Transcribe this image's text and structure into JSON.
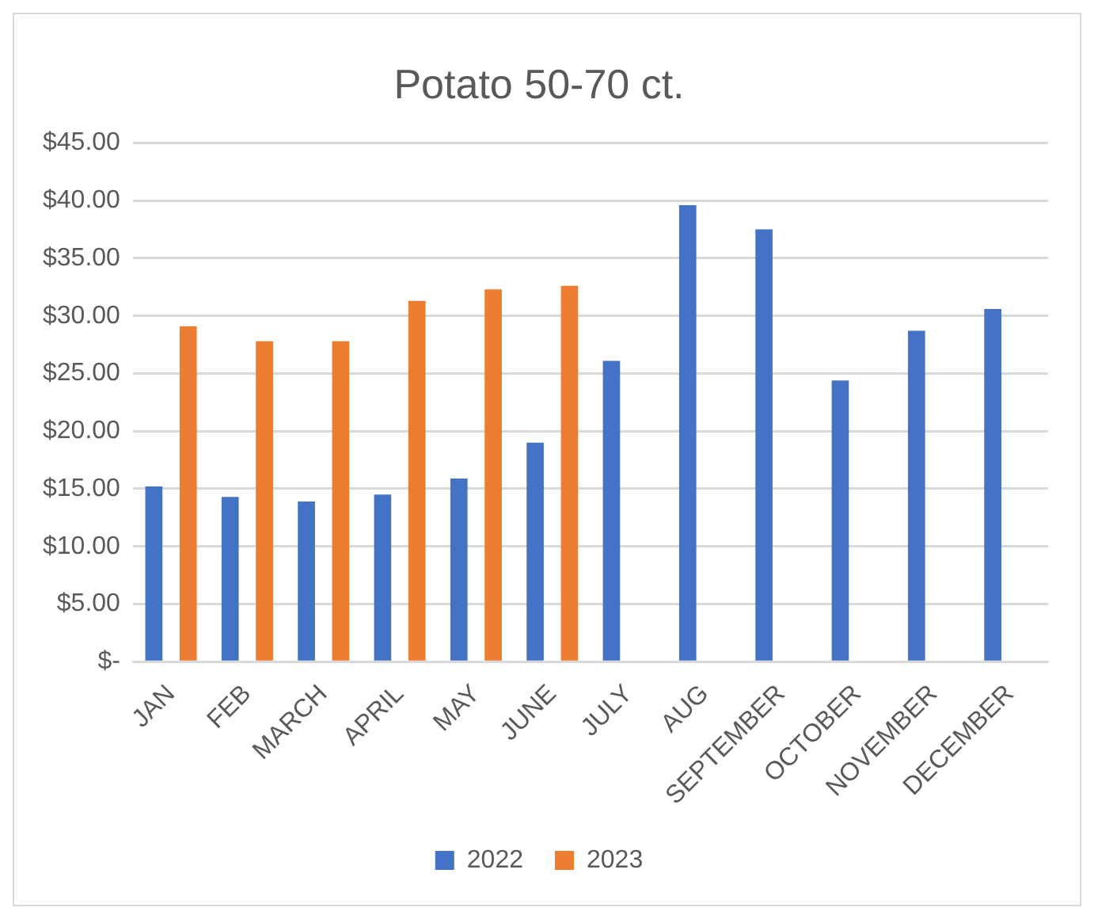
{
  "chart_data": {
    "type": "bar",
    "title": "Potato 50-70 ct.",
    "categories": [
      "JAN",
      "FEB",
      "MARCH",
      "APRIL",
      "MAY",
      "JUNE",
      "JULY",
      "AUG",
      "SEPTEMBER",
      "OCTOBER",
      "NOVEMBER",
      "DECEMBER"
    ],
    "series": [
      {
        "name": "2022",
        "color": "#4472c4",
        "values": [
          15.2,
          14.3,
          13.9,
          14.5,
          15.9,
          19.0,
          26.1,
          39.6,
          37.5,
          24.4,
          28.7,
          30.6
        ]
      },
      {
        "name": "2023",
        "color": "#ed7d31",
        "values": [
          29.1,
          27.8,
          27.8,
          31.3,
          32.3,
          32.6,
          null,
          null,
          null,
          null,
          null,
          null
        ]
      }
    ],
    "ylim": [
      0,
      45
    ],
    "yticks": [
      {
        "value": 0,
        "label": "$-"
      },
      {
        "value": 5,
        "label": "$5.00"
      },
      {
        "value": 10,
        "label": "$10.00"
      },
      {
        "value": 15,
        "label": "$15.00"
      },
      {
        "value": 20,
        "label": "$20.00"
      },
      {
        "value": 25,
        "label": "$25.00"
      },
      {
        "value": 30,
        "label": "$30.00"
      },
      {
        "value": 35,
        "label": "$35.00"
      },
      {
        "value": 40,
        "label": "$40.00"
      },
      {
        "value": 45,
        "label": "$45.00"
      }
    ],
    "grid": "y",
    "legend": "bottom"
  }
}
